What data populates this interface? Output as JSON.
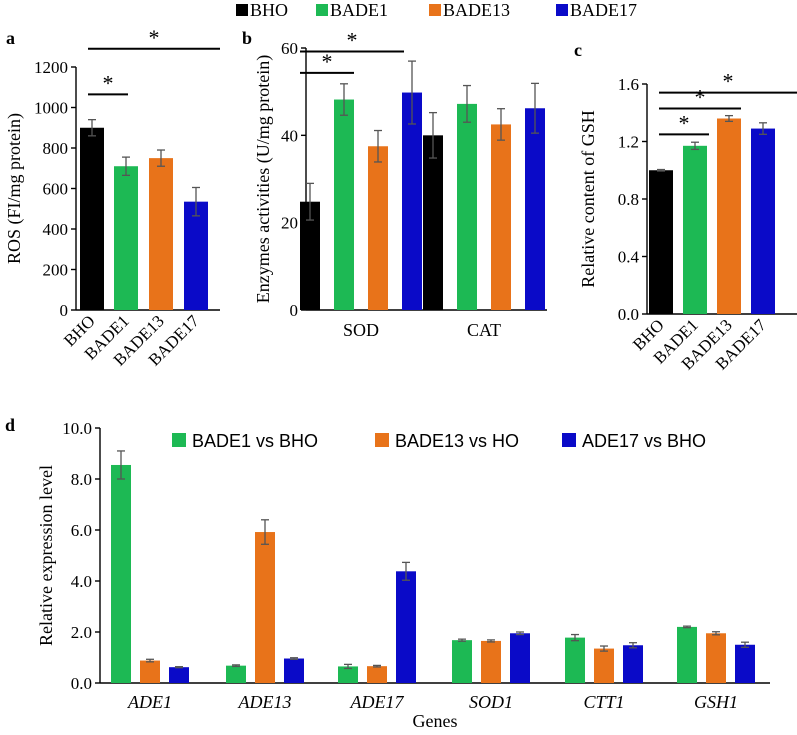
{
  "colors": {
    "BHO": "#000000",
    "BADE1": "#1db954",
    "BADE13": "#e8731a",
    "BADE17": "#0a0ac8"
  },
  "legend_top": [
    "BHO",
    "BADE1",
    "BADE13",
    "BADE17"
  ],
  "chart_data": [
    {
      "panel": "a",
      "type": "bar",
      "ylabel": "ROS (FI/mg protein)",
      "ylim": [
        0,
        1200
      ],
      "yticks": [
        "0",
        "200",
        "400",
        "600",
        "800",
        "1000",
        "1200"
      ],
      "categories": [
        "BHO",
        "BADE1",
        "BADE13",
        "BADE17"
      ],
      "values": [
        900,
        710,
        750,
        535
      ],
      "errors": [
        40,
        45,
        40,
        70
      ],
      "sig": [
        {
          "from": 0,
          "to": 1,
          "label": "*"
        },
        {
          "from": 0,
          "to": 3,
          "label": "*"
        }
      ]
    },
    {
      "panel": "b",
      "type": "bar",
      "ylabel": "Enzymes activities (U/mg protein)",
      "ylim": [
        0,
        60
      ],
      "yticks": [
        "0",
        "20",
        "40",
        "60"
      ],
      "groups": [
        "SOD",
        "CAT"
      ],
      "series": [
        {
          "name": "BHO",
          "values": [
            24.8,
            40
          ],
          "errors": [
            4.2,
            5.2
          ]
        },
        {
          "name": "BADE1",
          "values": [
            48.2,
            47.2
          ],
          "errors": [
            3.6,
            4.2
          ]
        },
        {
          "name": "BADE13",
          "values": [
            37.5,
            42.5
          ],
          "errors": [
            3.6,
            3.6
          ]
        },
        {
          "name": "BADE17",
          "values": [
            49.8,
            46.2
          ],
          "errors": [
            7.2,
            5.7
          ]
        }
      ],
      "sig": [
        {
          "group": 0,
          "from": 0,
          "to": 1,
          "label": "*"
        },
        {
          "group": 0,
          "from": 0,
          "to": 3,
          "label": "*"
        }
      ]
    },
    {
      "panel": "c",
      "type": "bar",
      "ylabel": "Relative content of GSH",
      "ylim": [
        0,
        1.6
      ],
      "yticks": [
        "0.0",
        "0.4",
        "0.8",
        "1.2",
        "1.6"
      ],
      "categories": [
        "BHO",
        "BADE1",
        "BADE13",
        "BADE17"
      ],
      "values": [
        1.0,
        1.17,
        1.36,
        1.29
      ],
      "errors": [
        0.005,
        0.025,
        0.02,
        0.04
      ],
      "sig": [
        {
          "from": 0,
          "to": 1,
          "label": "*"
        },
        {
          "from": 0,
          "to": 2,
          "label": "*"
        },
        {
          "from": 0,
          "to": 3,
          "label": "*"
        }
      ]
    },
    {
      "panel": "d",
      "type": "bar",
      "ylabel": "Relative expression level",
      "xlabel": "Genes",
      "ylim": [
        0,
        10
      ],
      "yticks": [
        "0.0",
        "2.0",
        "4.0",
        "6.0",
        "8.0",
        "10.0"
      ],
      "categories": [
        "ADE1",
        "ADE13",
        "ADE17",
        "SOD1",
        "CTT1",
        "GSH1"
      ],
      "legend": [
        "BADE1 vs BHO",
        "BADE13 vs HO",
        "ADE17 vs BHO"
      ],
      "series": [
        {
          "name": "BADE1 vs BHO",
          "color": "#1db954",
          "values": [
            8.55,
            0.68,
            0.65,
            1.68,
            1.78,
            2.2
          ],
          "errors": [
            0.55,
            0.03,
            0.08,
            0.04,
            0.12,
            0.03
          ]
        },
        {
          "name": "BADE13 vs HO",
          "color": "#e8731a",
          "values": [
            0.88,
            5.92,
            0.66,
            1.65,
            1.35,
            1.95
          ],
          "errors": [
            0.05,
            0.48,
            0.03,
            0.04,
            0.1,
            0.06
          ]
        },
        {
          "name": "ADE17 vs BHO",
          "color": "#0a0ac8",
          "values": [
            0.62,
            0.96,
            4.38,
            1.95,
            1.48,
            1.5
          ],
          "errors": [
            0.02,
            0.03,
            0.35,
            0.05,
            0.1,
            0.1
          ]
        }
      ]
    }
  ]
}
